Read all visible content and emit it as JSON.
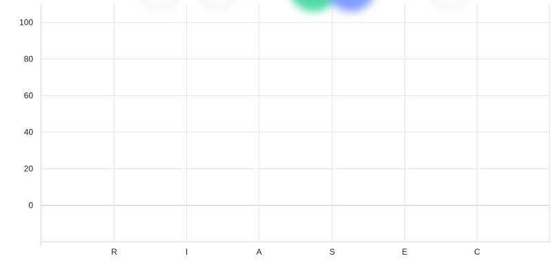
{
  "chart_data": {
    "type": "scatter",
    "categories": [
      "R",
      "I",
      "A",
      "S",
      "E",
      "C"
    ],
    "y_ticks": [
      0,
      20,
      40,
      60,
      80,
      100
    ],
    "ylim": [
      -20,
      110
    ],
    "grid": true,
    "title": "",
    "xlabel": "",
    "ylabel": "",
    "series": [
      {
        "color": "#bdbdbd",
        "points": [
          {
            "category": "R",
            "value": 115
          },
          {
            "category": "I",
            "value": 115
          },
          {
            "category": "C",
            "value": 115
          }
        ]
      },
      {
        "color": "#34d399",
        "points": [
          {
            "category": "S",
            "value": 115
          }
        ]
      },
      {
        "color": "#6b8cff",
        "points": [
          {
            "category": "S",
            "value": 115
          }
        ]
      }
    ]
  }
}
